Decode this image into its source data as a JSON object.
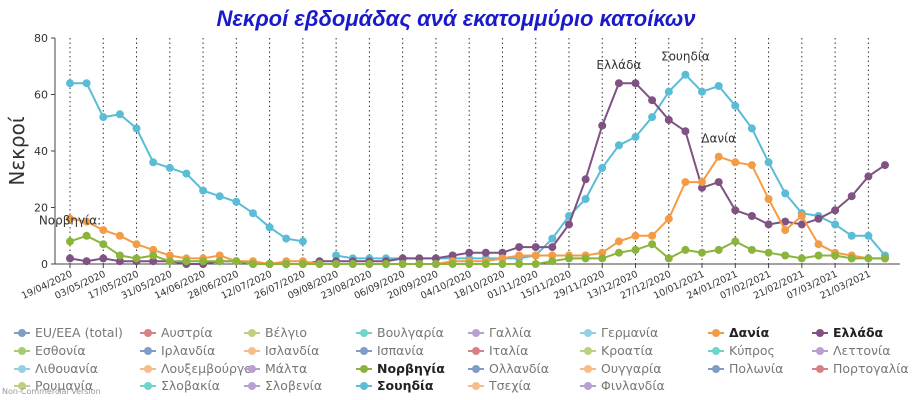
{
  "chart_data": {
    "type": "line",
    "title": "Νεκροί εβδομάδας ανά εκατομμύριο κατοίκων",
    "ylabel": "Νεκροί",
    "ylim": [
      0,
      80
    ],
    "yticks": [
      0,
      20,
      40,
      60,
      80
    ],
    "grid": "vertical dotted",
    "x": [
      "19/04/2020",
      "26/04/2020",
      "03/05/2020",
      "10/05/2020",
      "17/05/2020",
      "24/05/2020",
      "31/05/2020",
      "07/06/2020",
      "14/06/2020",
      "21/06/2020",
      "28/06/2020",
      "05/07/2020",
      "12/07/2020",
      "19/07/2020",
      "26/07/2020",
      "02/08/2020",
      "09/08/2020",
      "16/08/2020",
      "23/08/2020",
      "30/08/2020",
      "06/09/2020",
      "13/09/2020",
      "20/09/2020",
      "27/09/2020",
      "04/10/2020",
      "11/10/2020",
      "18/10/2020",
      "25/10/2020",
      "01/11/2020",
      "08/11/2020",
      "15/11/2020",
      "22/11/2020",
      "29/11/2020",
      "06/12/2020",
      "13/12/2020",
      "20/12/2020",
      "27/12/2020",
      "03/01/2021",
      "10/01/2021",
      "17/01/2021",
      "24/01/2021",
      "31/01/2021",
      "07/02/2021",
      "14/02/2021",
      "21/02/2021",
      "28/02/2021",
      "07/03/2021",
      "14/03/2021",
      "21/03/2021",
      "28/03/2021"
    ],
    "xtick_labels": [
      "19/04/2020",
      "03/05/2020",
      "17/05/2020",
      "31/05/2020",
      "14/06/2020",
      "28/06/2020",
      "12/07/2020",
      "26/07/2020",
      "09/08/2020",
      "23/08/2020",
      "06/09/2020",
      "20/09/2020",
      "04/10/2020",
      "18/10/2020",
      "01/11/2020",
      "15/11/2020",
      "29/11/2020",
      "13/12/2020",
      "27/12/2020",
      "10/01/2021",
      "24/01/2021",
      "07/02/2021",
      "21/02/2021",
      "07/03/2021",
      "21/03/2021"
    ],
    "series": [
      {
        "name": "Σουηδία",
        "color": "#5bbcd6",
        "values": [
          64,
          64,
          52,
          53,
          48,
          36,
          34,
          32,
          26,
          24,
          22,
          18,
          13,
          9,
          8,
          null,
          3,
          2,
          2,
          2,
          2,
          2,
          2,
          2,
          2,
          2,
          2,
          2,
          3,
          9,
          17,
          23,
          34,
          42,
          45,
          52,
          61,
          67,
          61,
          63,
          56,
          48,
          36,
          25,
          18,
          17,
          14,
          10,
          10,
          3
        ]
      },
      {
        "name": "Ελλάδα",
        "color": "#7f5283",
        "values": [
          2,
          1,
          2,
          1,
          1,
          1,
          1,
          0,
          0,
          1,
          1,
          0,
          0,
          0,
          0,
          1,
          1,
          1,
          1,
          1,
          2,
          2,
          2,
          3,
          4,
          4,
          4,
          6,
          6,
          6,
          14,
          30,
          49,
          64,
          64,
          58,
          51,
          47,
          27,
          29,
          19,
          17,
          14,
          15,
          14,
          16,
          19,
          24,
          31,
          35
        ]
      },
      {
        "name": "Δανία",
        "color": "#f39c45",
        "values": [
          16,
          15,
          12,
          10,
          7,
          5,
          3,
          2,
          2,
          3,
          1,
          1,
          0,
          1,
          1,
          0,
          0,
          0,
          0,
          0,
          0,
          0,
          0,
          1,
          1,
          1,
          2,
          3,
          3,
          3,
          3,
          3,
          4,
          8,
          10,
          10,
          16,
          29,
          29,
          38,
          36,
          35,
          23,
          12,
          17,
          7,
          4,
          3,
          2,
          2
        ]
      },
      {
        "name": "Νορβηγία",
        "color": "#8ab43c",
        "values": [
          8,
          10,
          7,
          3,
          2,
          3,
          1,
          1,
          1,
          1,
          1,
          0,
          0,
          0,
          0,
          0,
          0,
          0,
          0,
          0,
          0,
          0,
          0,
          0,
          0,
          0,
          0,
          0,
          0,
          1,
          2,
          2,
          2,
          4,
          5,
          7,
          2,
          5,
          4,
          5,
          8,
          5,
          4,
          3,
          2,
          3,
          3,
          2,
          2,
          2
        ]
      }
    ],
    "annotations": [
      {
        "text": "Νορβηγία:",
        "x": "19/04/2020",
        "y": 14
      },
      {
        "text": "Ελλάδα",
        "x": "06/12/2020",
        "y": 69
      },
      {
        "text": "Σουηδία",
        "x": "03/01/2021",
        "y": 72
      },
      {
        "text": "Δανία",
        "x": "17/01/2021",
        "y": 43
      }
    ],
    "legend": {
      "placement": "bottom",
      "items": [
        {
          "name": "EU/EEA (total)",
          "color": "#7f9dc6",
          "active": false
        },
        {
          "name": "Αυστρία",
          "color": "#d98086",
          "active": false
        },
        {
          "name": "Βέλγιο",
          "color": "#bcd07f",
          "active": false
        },
        {
          "name": "Βουλγαρία",
          "color": "#6ed6c9",
          "active": false
        },
        {
          "name": "Γαλλία",
          "color": "#b8a0d1",
          "active": false
        },
        {
          "name": "Γερμανία",
          "color": "#95d0e2",
          "active": false
        },
        {
          "name": "Δανία",
          "color": "#f39c45",
          "active": true
        },
        {
          "name": "Ελλάδα",
          "color": "#7f5283",
          "active": true
        },
        {
          "name": "Εσθονία",
          "color": "#a7cc6f",
          "active": false
        },
        {
          "name": "Ιρλανδία",
          "color": "#7f9dc6",
          "active": false
        },
        {
          "name": "Ισλανδία",
          "color": "#f6bd8b",
          "active": false
        },
        {
          "name": "Ισπανία",
          "color": "#7f9dc6",
          "active": false
        },
        {
          "name": "Ιταλία",
          "color": "#d98086",
          "active": false
        },
        {
          "name": "Κροατία",
          "color": "#bcd07f",
          "active": false
        },
        {
          "name": "Κύπρος",
          "color": "#6ed6c9",
          "active": false
        },
        {
          "name": "Λεττονία",
          "color": "#b8a0d1",
          "active": false
        },
        {
          "name": "Λιθουανία",
          "color": "#95d0e2",
          "active": false
        },
        {
          "name": "Λουξεμβούργο",
          "color": "#f6bd8b",
          "active": false
        },
        {
          "name": "Μάλτα",
          "color": "#b8a0d1",
          "active": false
        },
        {
          "name": "Νορβηγία",
          "color": "#8ab43c",
          "active": true
        },
        {
          "name": "Ολλανδία",
          "color": "#7f9dc6",
          "active": false
        },
        {
          "name": "Ουγγαρία",
          "color": "#f6bd8b",
          "active": false
        },
        {
          "name": "Πολωνία",
          "color": "#7f9dc6",
          "active": false
        },
        {
          "name": "Πορτογαλία",
          "color": "#d98086",
          "active": false
        },
        {
          "name": "Ρουμανία",
          "color": "#bcd07f",
          "active": false
        },
        {
          "name": "Σλοβακία",
          "color": "#6ed6c9",
          "active": false
        },
        {
          "name": "Σλοβενία",
          "color": "#b8a0d1",
          "active": false
        },
        {
          "name": "Σουηδία",
          "color": "#5bbcd6",
          "active": true
        },
        {
          "name": "Τσεχία",
          "color": "#f6bd8b",
          "active": false
        },
        {
          "name": "Φινλανδία",
          "color": "#b8a0d1",
          "active": false
        }
      ]
    },
    "credit": "Non-Commercial Version"
  }
}
